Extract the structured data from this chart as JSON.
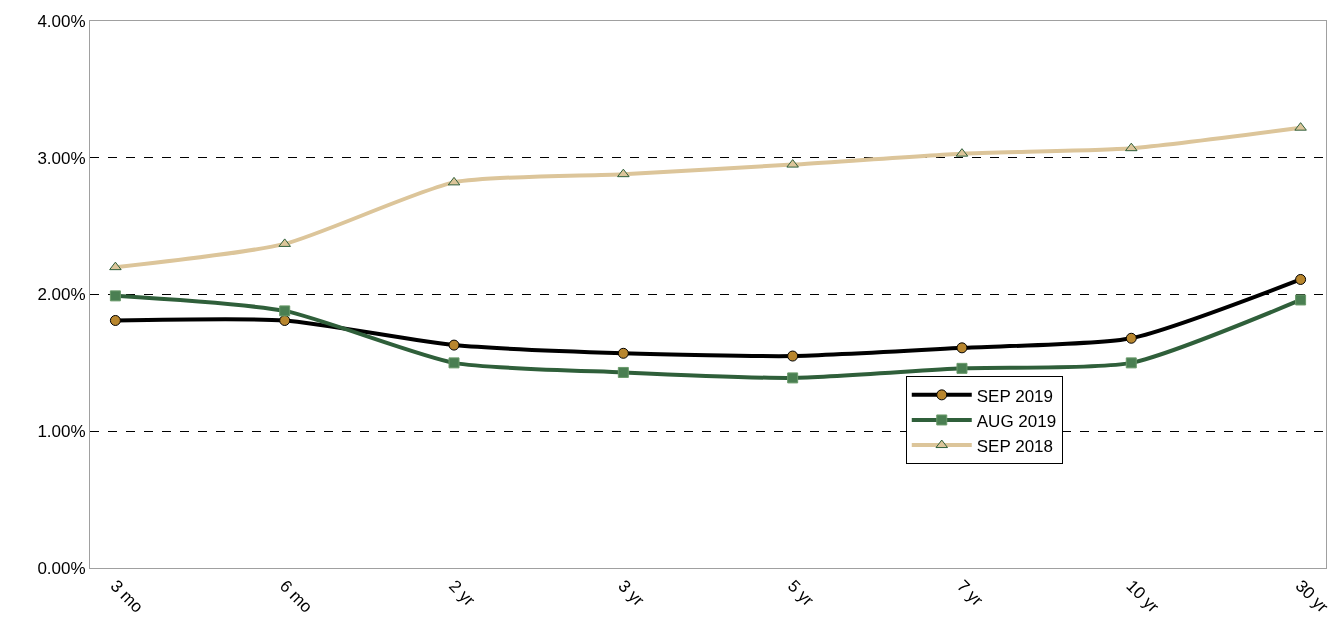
{
  "chart_data": {
    "type": "line",
    "categories": [
      "3 mo",
      "6 mo",
      "2 yr",
      "3 yr",
      "5 yr",
      "7 yr",
      "10 yr",
      "30 yr"
    ],
    "ylim": [
      0,
      4
    ],
    "yticks": [
      {
        "value": 0,
        "label": "0.00%"
      },
      {
        "value": 1,
        "label": "1.00%"
      },
      {
        "value": 2,
        "label": "2.00%"
      },
      {
        "value": 3,
        "label": "3.00%"
      },
      {
        "value": 4,
        "label": "4.00%"
      }
    ],
    "grid": "y",
    "legend": "right",
    "series": [
      {
        "name": "SEP 2019",
        "color": "#000000",
        "marker": "circle",
        "values": [
          1.81,
          1.81,
          1.63,
          1.57,
          1.55,
          1.61,
          1.68,
          2.11
        ]
      },
      {
        "name": "AUG 2019",
        "color": "#2f5f3a",
        "marker": "square",
        "values": [
          1.99,
          1.88,
          1.5,
          1.43,
          1.39,
          1.46,
          1.5,
          1.96
        ]
      },
      {
        "name": "SEP 2018",
        "color": "#dcc59a",
        "marker": "triangle",
        "values": [
          2.2,
          2.37,
          2.82,
          2.88,
          2.95,
          3.03,
          3.07,
          3.22
        ]
      }
    ]
  }
}
